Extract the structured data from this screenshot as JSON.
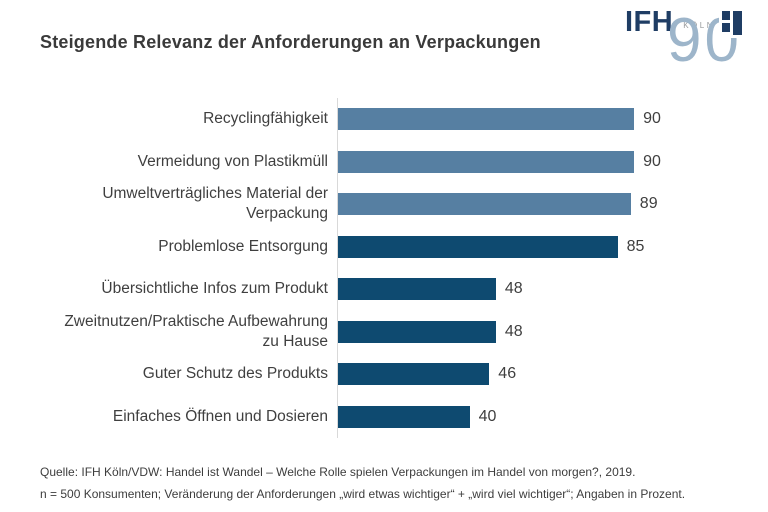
{
  "title": "Steigende Relevanz der Anforderungen an Verpackungen",
  "logo": {
    "name": "IFH",
    "city": "KÖLN",
    "anniversary": "90"
  },
  "chart_data": {
    "type": "bar",
    "orientation": "horizontal",
    "title": "Steigende Relevanz der Anforderungen an Verpackungen",
    "categories": [
      "Recyclingfähigkeit",
      "Vermeidung von Plastikmüll",
      "Umweltverträgliches Material der Verpackung",
      "Problemlose Entsorgung",
      "Übersichtliche Infos zum Produkt",
      "Zweitnutzen/Praktische Aufbewahrung zu Hause",
      "Guter Schutz des Produkts",
      "Einfaches Öffnen und Dosieren"
    ],
    "values": [
      90,
      90,
      89,
      85,
      48,
      48,
      46,
      40
    ],
    "bar_colors": [
      "#567fa2",
      "#567fa2",
      "#567fa2",
      "#0e4a70",
      "#0e4a70",
      "#0e4a70",
      "#0e4a70",
      "#0e4a70"
    ],
    "unit": "Prozent",
    "xlim": [
      0,
      100
    ],
    "grid": false,
    "legend": false,
    "value_labels": "outside-end"
  },
  "footer": {
    "line1": "Quelle: IFH Köln/VDW: Handel ist Wandel – Welche Rolle spielen Verpackungen im Handel von morgen?, 2019.",
    "line2": "n = 500 Konsumenten; Veränderung der Anforderungen „wird etwas wichtiger“ + „wird viel wichtiger“; Angaben in Prozent."
  },
  "colors": {
    "background": "#ffffff",
    "light_bar": "#567fa2",
    "dark_bar": "#0e4a70",
    "axis_line": "#d9d9d9",
    "text": "#3f3f3f",
    "title_text": "#3a3a3a",
    "logo_navy": "#1f3d64",
    "logo_light_blue": "#9db5ca",
    "logo_city_gray": "#97999b"
  }
}
